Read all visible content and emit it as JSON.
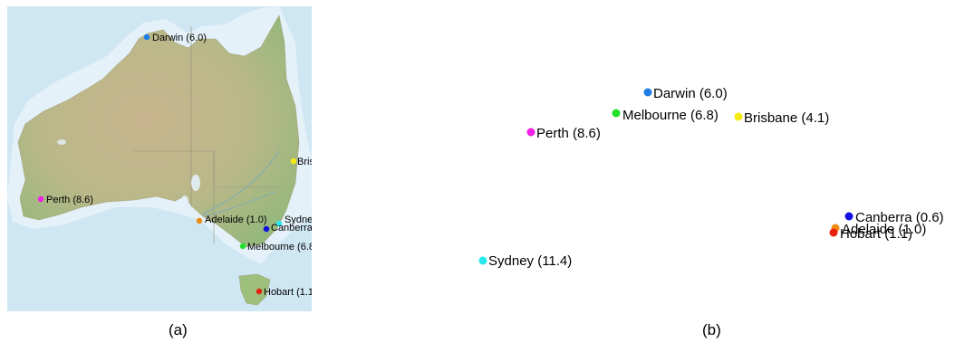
{
  "panels": {
    "a": {
      "caption": "(a)"
    },
    "b": {
      "caption": "(b)"
    }
  },
  "cities": [
    {
      "id": "darwin",
      "label": "Darwin (6.0)",
      "color": "#1f7de6"
    },
    {
      "id": "melbourne",
      "label": "Melbourne (6.8)",
      "color": "#22e02a"
    },
    {
      "id": "brisbane",
      "label": "Brisbane (4.1)",
      "color": "#f5ea12"
    },
    {
      "id": "perth",
      "label": "Perth (8.6)",
      "color": "#f020e6"
    },
    {
      "id": "sydney",
      "label": "Sydney (11.4)",
      "color": "#27e8ee"
    },
    {
      "id": "canberra",
      "label": "Canberra (0.6)",
      "color": "#1010e0"
    },
    {
      "id": "adelaide",
      "label": "Adelaide (1.0)",
      "color": "#f08a10"
    },
    {
      "id": "hobart",
      "label": "Hobart (1.1)",
      "color": "#e82010"
    }
  ],
  "map_colors": {
    "ocean": "#cfe6f3",
    "shelf": "#e3f1f9",
    "land": "#b7b98a",
    "vegetation": "#9cbf7b"
  }
}
